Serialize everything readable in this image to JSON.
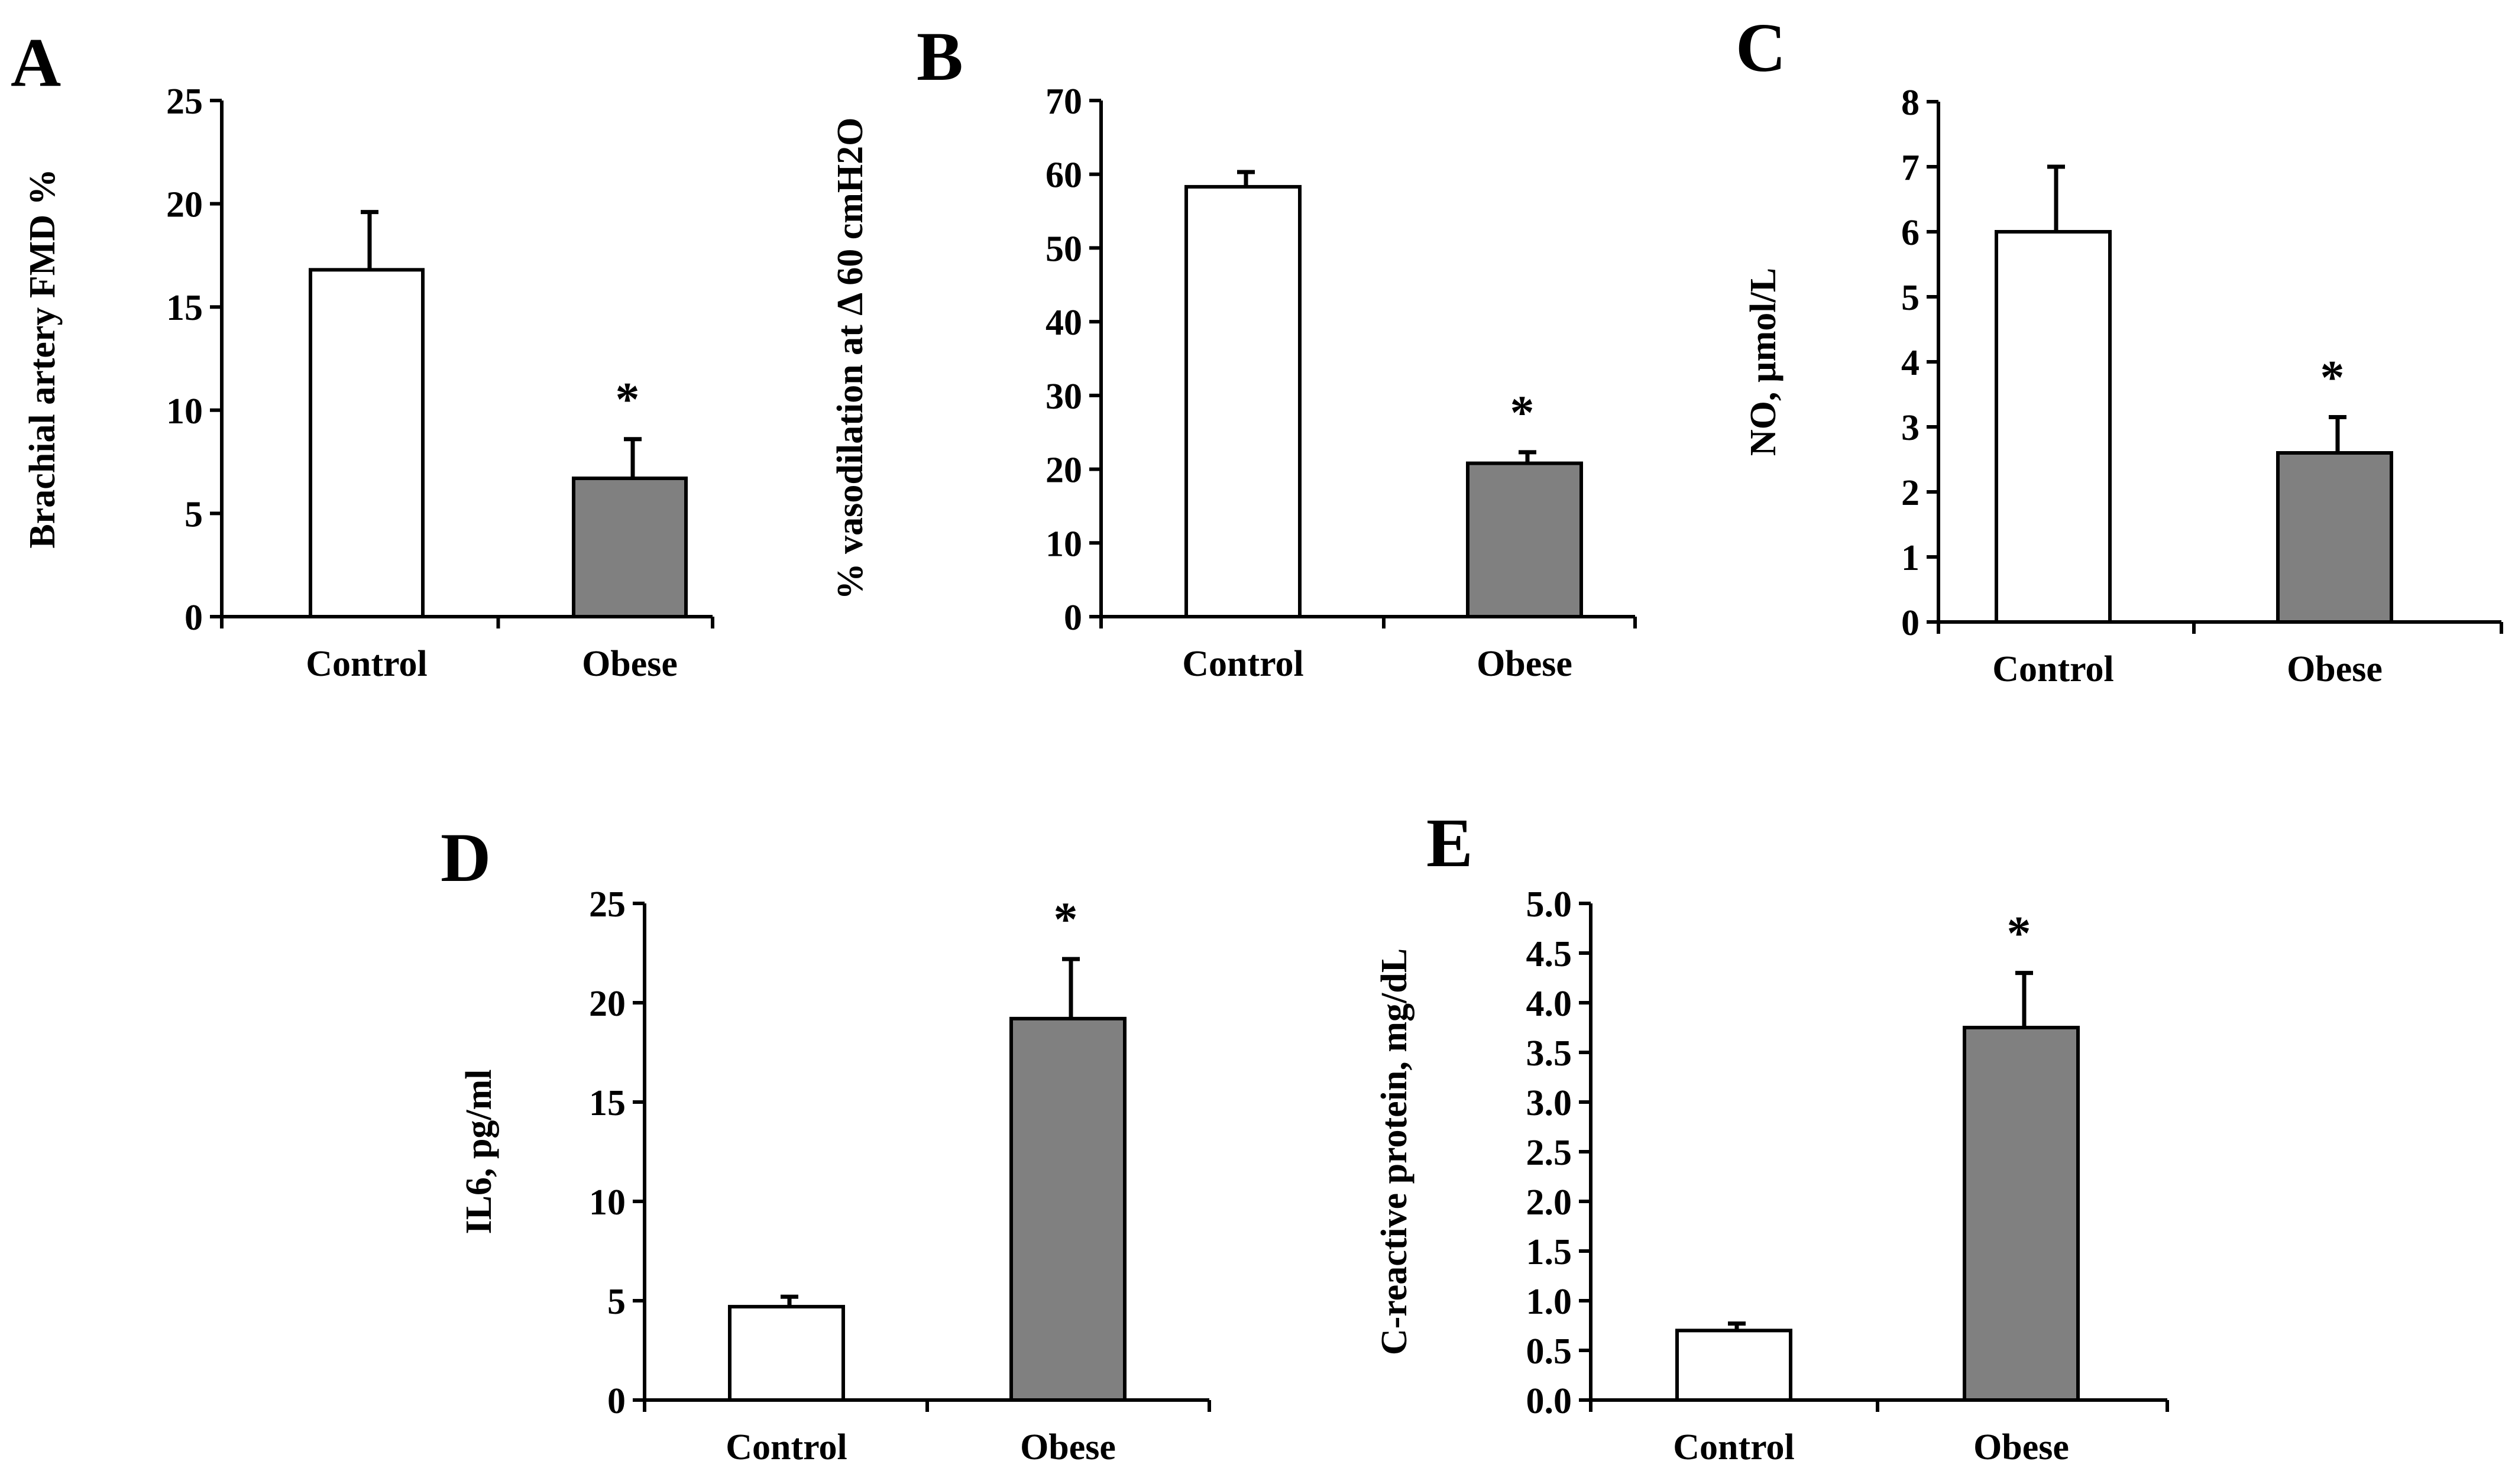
{
  "figure": {
    "panels": [
      "A",
      "B",
      "C",
      "D",
      "E"
    ]
  },
  "colors": {
    "control_fill": "#ffffff",
    "obese_fill": "#808080",
    "stroke": "#000000"
  },
  "chart_data": [
    {
      "panel": "A",
      "type": "bar",
      "categories": [
        "Control",
        "Obese"
      ],
      "values": [
        16.8,
        6.7
      ],
      "errors": [
        2.8,
        1.9
      ],
      "significance": [
        "",
        "*"
      ],
      "ylabel": "Brachial artery FMD %",
      "ylim": [
        0,
        25
      ],
      "yticks": [
        "0",
        "5",
        "10",
        "15",
        "20",
        "25"
      ]
    },
    {
      "panel": "B",
      "type": "bar",
      "categories": [
        "Control",
        "Obese"
      ],
      "values": [
        58.3,
        20.8
      ],
      "errors": [
        2.0,
        1.5
      ],
      "significance": [
        "",
        "*"
      ],
      "ylabel": "% vasodilation at Δ 60 cmH2O",
      "ylim": [
        0,
        70
      ],
      "yticks": [
        "0",
        "10",
        "20",
        "30",
        "40",
        "50",
        "60",
        "70"
      ]
    },
    {
      "panel": "C",
      "type": "bar",
      "categories": [
        "Control",
        "Obese"
      ],
      "values": [
        6.0,
        2.6
      ],
      "errors": [
        1.0,
        0.55
      ],
      "significance": [
        "",
        "*"
      ],
      "ylabel": "NO, µmol/L",
      "ylim": [
        0,
        8
      ],
      "yticks": [
        "0",
        "1",
        "2",
        "3",
        "4",
        "5",
        "6",
        "7",
        "8"
      ]
    },
    {
      "panel": "D",
      "type": "bar",
      "categories": [
        "Control",
        "Obese"
      ],
      "values": [
        4.7,
        19.2
      ],
      "errors": [
        0.5,
        3.0
      ],
      "significance": [
        "",
        "*"
      ],
      "ylabel": "IL6, pg/ml",
      "ylim": [
        0,
        25
      ],
      "yticks": [
        "0",
        "5",
        "10",
        "15",
        "20",
        "25"
      ]
    },
    {
      "panel": "E",
      "type": "bar",
      "categories": [
        "Control",
        "Obese"
      ],
      "values": [
        0.7,
        3.75
      ],
      "errors": [
        0.07,
        0.55
      ],
      "significance": [
        "",
        "*"
      ],
      "ylabel": "C-reactive protein, mg/dL",
      "ylim": [
        0,
        5
      ],
      "yticks": [
        "0.0",
        "0.5",
        "1.0",
        "1.5",
        "2.0",
        "2.5",
        "3.0",
        "3.5",
        "4.0",
        "4.5",
        "5.0"
      ]
    }
  ]
}
